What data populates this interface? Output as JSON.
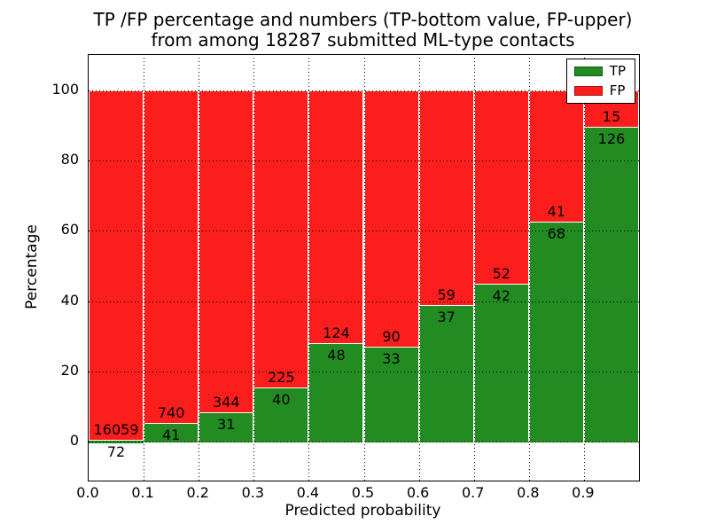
{
  "figure": {
    "title_line1": "TP /FP percentage and numbers (TP-bottom value, FP-upper)",
    "title_line2": "from among 18287 submitted ML-type contacts",
    "background": "#ffffff"
  },
  "axes": {
    "xlabel": "Predicted probability",
    "ylabel": "Percentage",
    "x_tick_labels": [
      "0.0",
      "0.1",
      "0.2",
      "0.3",
      "0.4",
      "0.5",
      "0.6",
      "0.7",
      "0.8",
      "0.9"
    ],
    "x_tick_values": [
      0.0,
      0.1,
      0.2,
      0.3,
      0.4,
      0.5,
      0.6,
      0.7,
      0.8,
      0.9
    ],
    "y_tick_labels": [
      "0",
      "20",
      "40",
      "60",
      "80",
      "100"
    ],
    "y_tick_values": [
      0,
      20,
      40,
      60,
      80,
      100
    ],
    "xlim": [
      0.0,
      1.0
    ],
    "ylim": [
      -11,
      110
    ],
    "grid_style": "dotted",
    "grid_color": "#000000"
  },
  "legend": {
    "position": "upper-right",
    "entries": [
      {
        "label": "TP",
        "color": "#228b22"
      },
      {
        "label": "FP",
        "color": "#fc1d1d"
      }
    ]
  },
  "chart_data": {
    "type": "bar",
    "stacked": true,
    "normalized_to": 100,
    "total_contacts": 18287,
    "bin_width": 0.1,
    "categories": [
      "0.0-0.1",
      "0.1-0.2",
      "0.2-0.3",
      "0.3-0.4",
      "0.4-0.5",
      "0.5-0.6",
      "0.6-0.7",
      "0.7-0.8",
      "0.8-0.9",
      "0.9-1.0"
    ],
    "bin_starts": [
      0.0,
      0.1,
      0.2,
      0.3,
      0.4,
      0.5,
      0.6,
      0.7,
      0.8,
      0.9
    ],
    "series": [
      {
        "name": "TP",
        "color": "#228b22",
        "counts": [
          72,
          41,
          31,
          40,
          48,
          33,
          37,
          42,
          68,
          126
        ]
      },
      {
        "name": "FP",
        "color": "#fc1d1d",
        "counts": [
          16059,
          740,
          344,
          225,
          124,
          90,
          59,
          52,
          41,
          15
        ]
      }
    ],
    "tp_percent_of_bin": [
      0.45,
      5.25,
      8.27,
      15.09,
      27.91,
      26.83,
      38.54,
      44.68,
      62.39,
      89.36
    ],
    "title": "TP /FP percentage and numbers (TP-bottom value, FP-upper) from among 18287 submitted ML-type contacts",
    "xlabel": "Predicted probability",
    "ylabel": "Percentage",
    "bar_edge_color": "#ffffff"
  }
}
